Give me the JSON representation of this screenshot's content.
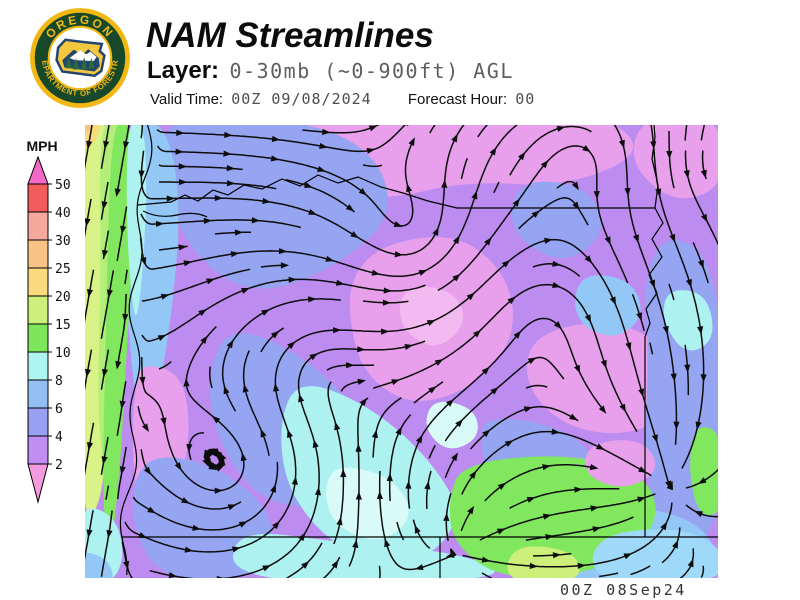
{
  "header": {
    "title": "NAM Streamlines",
    "layer_label": "Layer:",
    "layer_value": "0-30mb (~0-900ft) AGL",
    "valid_time_label": "Valid Time:",
    "valid_time_value": "00Z 09/08/2024",
    "forecast_hour_label": "Forecast Hour:",
    "forecast_hour_value": "00"
  },
  "logo": {
    "text_top": "OREGON",
    "text_bottom": "DEPARTMENT OF FORESTRY",
    "colors": {
      "gold": "#f2b713",
      "dark_green": "#17482a",
      "navy": "#24456e",
      "white": "#ffffff",
      "tree_green": "#2e6b3a",
      "state_gold": "#f3c83f"
    }
  },
  "legend": {
    "title": "MPH",
    "labels": [
      "50",
      "40",
      "30",
      "25",
      "20",
      "15",
      "10",
      "8",
      "6",
      "4",
      "2"
    ],
    "segment_colors_top_to_bottom": [
      "#f25c5c",
      "#f5a89d",
      "#f7c386",
      "#f9da7e",
      "#cdf07b",
      "#7de75b",
      "#aef4f2",
      "#93c0f4",
      "#97a0f2",
      "#c08df0"
    ],
    "above_max_color": "#f468c8",
    "below_min_color": "#f49ade"
  },
  "map": {
    "timestamp": "00Z 08Sep24",
    "palette": {
      "purple": "#bd8cf0",
      "pink": "#e8a0ec",
      "pinkLight": "#f3baf1",
      "peri": "#95a5f2",
      "blue": "#93c8f6",
      "cyan": "#adf2f0",
      "cyanPale": "#d9fbf8",
      "cyanBlue": "#9fd9f9",
      "green": "#80e75e",
      "greenYlw": "#cdf07b",
      "ylwGreen": "#d9f287",
      "greenLight": "#b2ee78",
      "yellow": "#f8da7c",
      "orange": "#f7c386",
      "line": "#0d0d0d",
      "border": "#000000"
    }
  }
}
